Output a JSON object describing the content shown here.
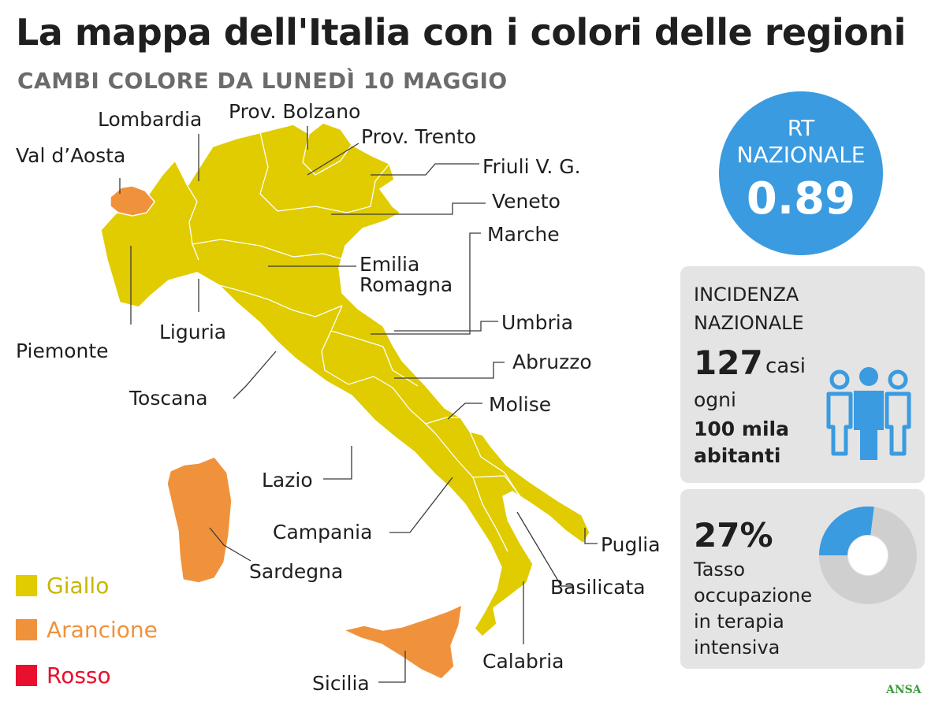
{
  "header": {
    "title": "La mappa dell'Italia con i colori delle regioni",
    "subtitle": "CAMBI COLORE DA LUNEDÌ 10 MAGGIO"
  },
  "colors": {
    "giallo": "#e0cc00",
    "arancione": "#f0923c",
    "rosso": "#e8102c",
    "rt_blue": "#3a9be0",
    "panel_gray": "#e4e4e4",
    "donut_gray": "#cfcfcf"
  },
  "regions": [
    {
      "name": "Val d’Aosta",
      "color": "arancione"
    },
    {
      "name": "Lombardia",
      "color": "giallo"
    },
    {
      "name": "Prov. Bolzano",
      "color": "giallo"
    },
    {
      "name": "Prov. Trento",
      "color": "giallo"
    },
    {
      "name": "Friuli V. G.",
      "color": "giallo"
    },
    {
      "name": "Veneto",
      "color": "giallo"
    },
    {
      "name": "Marche",
      "color": "giallo"
    },
    {
      "name": "Emilia Romagna",
      "color": "giallo"
    },
    {
      "name": "Piemonte",
      "color": "giallo"
    },
    {
      "name": "Liguria",
      "color": "giallo"
    },
    {
      "name": "Umbria",
      "color": "giallo"
    },
    {
      "name": "Abruzzo",
      "color": "giallo"
    },
    {
      "name": "Toscana",
      "color": "giallo"
    },
    {
      "name": "Molise",
      "color": "giallo"
    },
    {
      "name": "Lazio",
      "color": "giallo"
    },
    {
      "name": "Campania",
      "color": "giallo"
    },
    {
      "name": "Puglia",
      "color": "giallo"
    },
    {
      "name": "Sardegna",
      "color": "arancione"
    },
    {
      "name": "Basilicata",
      "color": "giallo"
    },
    {
      "name": "Calabria",
      "color": "giallo"
    },
    {
      "name": "Sicilia",
      "color": "arancione"
    }
  ],
  "labels": {
    "emilia_line1": "Emilia",
    "emilia_line2": "Romagna"
  },
  "rt": {
    "label_line1": "RT",
    "label_line2": "NAZIONALE",
    "value": "0.89"
  },
  "incidence": {
    "heading_line1": "INCIDENZA",
    "heading_line2": "NAZIONALE",
    "value": "127",
    "unit": "casi",
    "per_line1": "ogni",
    "per_line2": "100 mila",
    "per_line3": "abitanti",
    "icon": "people-icon"
  },
  "occupancy": {
    "value": "27%",
    "percent": 27,
    "desc_line1": "Tasso",
    "desc_line2": "occupazione",
    "desc_line3": "in terapia",
    "desc_line4": "intensiva"
  },
  "legend": [
    {
      "label": "Giallo",
      "color": "#e0cc00"
    },
    {
      "label": "Arancione",
      "color": "#f0923c"
    },
    {
      "label": "Rosso",
      "color": "#e8102c"
    }
  ],
  "footer": {
    "source": "ANSA"
  }
}
